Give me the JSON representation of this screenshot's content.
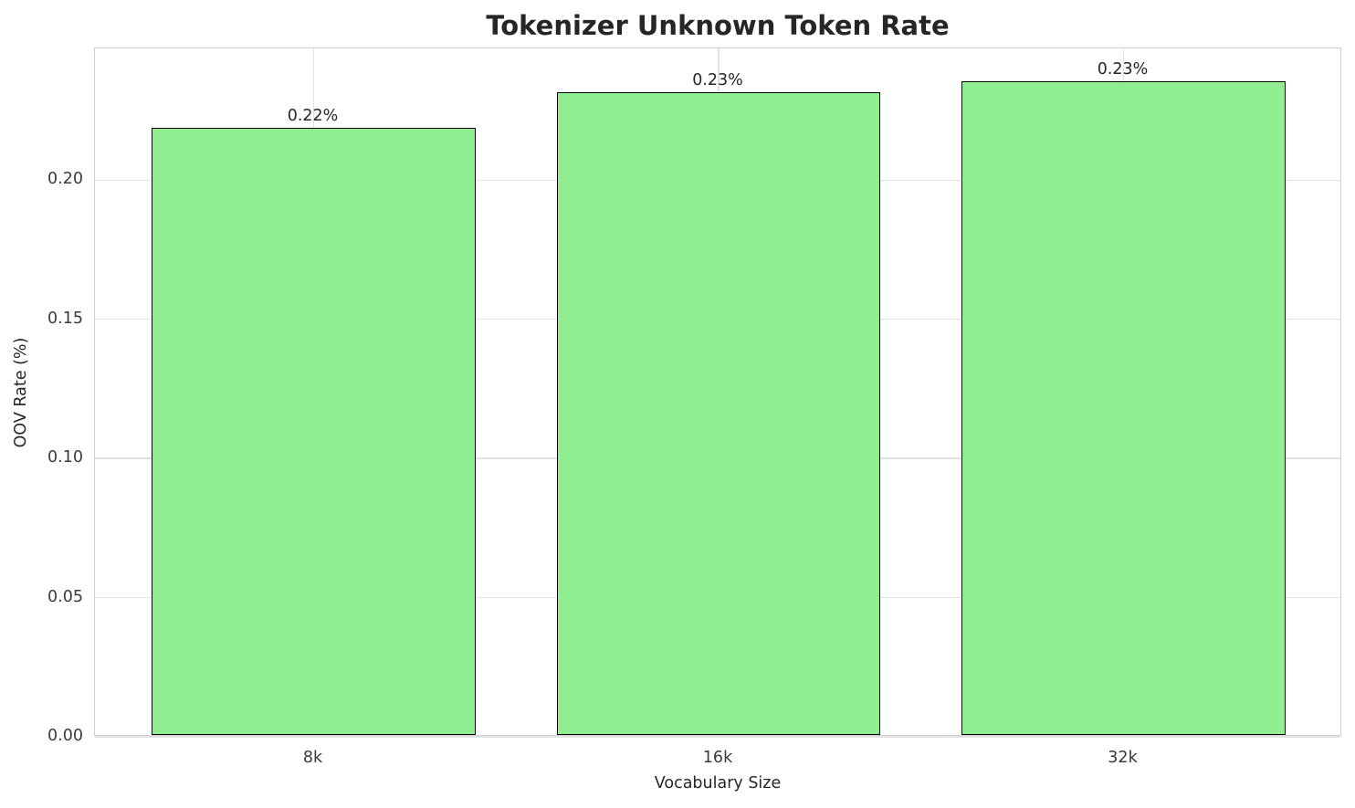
{
  "chart_data": {
    "type": "bar",
    "title": "Tokenizer Unknown Token Rate",
    "xlabel": "Vocabulary Size",
    "ylabel": "OOV Rate (%)",
    "categories": [
      "8k",
      "16k",
      "32k"
    ],
    "values": [
      0.218,
      0.231,
      0.235
    ],
    "bar_labels": [
      "0.22%",
      "0.23%",
      "0.23%"
    ],
    "ylim": [
      0,
      0.2473
    ],
    "yticks": [
      0,
      0.05,
      0.1,
      0.15,
      0.2
    ],
    "ytick_labels": [
      "0.00",
      "0.05",
      "0.10",
      "0.15",
      "0.20"
    ],
    "grid": true,
    "legend": "none",
    "colors": {
      "bar_fill": "#90ee90",
      "bar_edge": "#000000",
      "grid_line": "#e2e2e2",
      "spine": "#d0d0d0",
      "text": "#262626",
      "background": "#ffffff"
    }
  }
}
